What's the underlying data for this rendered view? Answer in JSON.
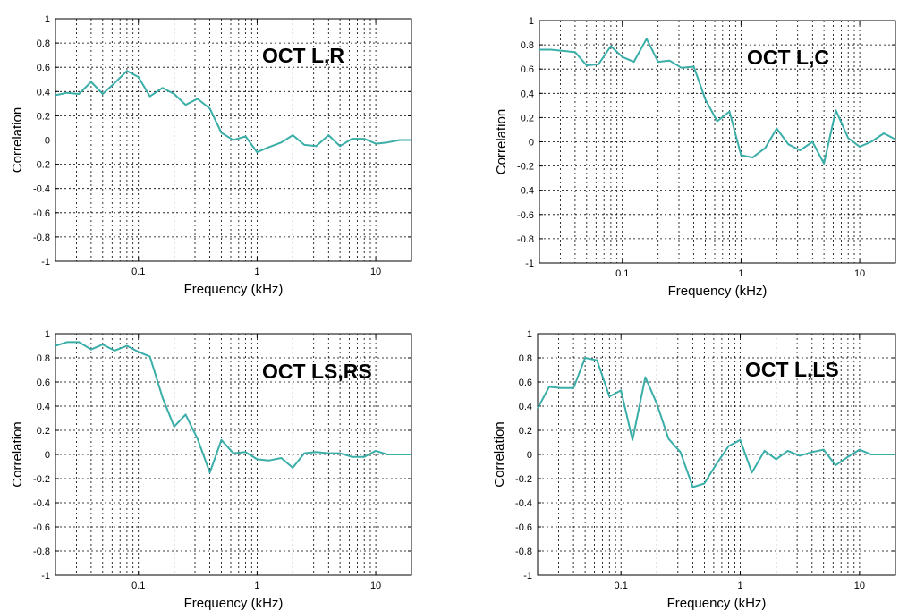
{
  "series_color": "#3aaea8",
  "chart_data": [
    {
      "type": "line",
      "title": "OCT L,R",
      "xlabel": "Frequency (kHz)",
      "ylabel": "Correlation",
      "x_scale": "log",
      "xlim": [
        0.02,
        20
      ],
      "ylim": [
        -1,
        1
      ],
      "x_ticks": [
        0.1,
        1,
        10
      ],
      "x_tick_labels": [
        "0.1",
        "1",
        "10"
      ],
      "y_ticks": [
        -1,
        -0.8,
        -0.6,
        -0.4,
        -0.2,
        0,
        0.2,
        0.4,
        0.6,
        0.8,
        1
      ],
      "y_tick_labels": [
        "-1",
        "-0.8",
        "-0.6",
        "-0.4",
        "-0.2",
        "0",
        "0.2",
        "0.4",
        "0.6",
        "0.8",
        "1"
      ],
      "grid": true,
      "x": [
        0.02,
        0.025,
        0.0315,
        0.04,
        0.05,
        0.063,
        0.08,
        0.1,
        0.125,
        0.16,
        0.2,
        0.25,
        0.315,
        0.4,
        0.5,
        0.63,
        0.8,
        1,
        1.25,
        1.6,
        2,
        2.5,
        3.15,
        4,
        5,
        6.3,
        8,
        10,
        12.5,
        16,
        20
      ],
      "y": [
        0.37,
        0.39,
        0.38,
        0.48,
        0.38,
        0.47,
        0.57,
        0.52,
        0.36,
        0.43,
        0.38,
        0.29,
        0.34,
        0.26,
        0.06,
        0.0,
        0.03,
        -0.1,
        -0.06,
        -0.02,
        0.04,
        -0.04,
        -0.05,
        0.04,
        -0.05,
        0.01,
        0.01,
        -0.03,
        -0.02,
        0.0,
        0.0
      ]
    },
    {
      "type": "line",
      "title": "OCT L,C",
      "xlabel": "Frequency (kHz)",
      "ylabel": "Correlation",
      "x_scale": "log",
      "xlim": [
        0.02,
        20
      ],
      "ylim": [
        -1,
        1
      ],
      "x_ticks": [
        0.1,
        1,
        10
      ],
      "x_tick_labels": [
        "0.1",
        "1",
        "10"
      ],
      "y_ticks": [
        -1,
        -0.8,
        -0.6,
        -0.4,
        -0.2,
        0,
        0.2,
        0.4,
        0.6,
        0.8,
        1
      ],
      "y_tick_labels": [
        "-1",
        "-0.8",
        "-0.6",
        "-0.4",
        "-0.2",
        "0",
        "0.2",
        "0.4",
        "0.6",
        "0.8",
        "1"
      ],
      "grid": true,
      "x": [
        0.02,
        0.025,
        0.0315,
        0.04,
        0.05,
        0.063,
        0.08,
        0.1,
        0.125,
        0.16,
        0.2,
        0.25,
        0.315,
        0.4,
        0.5,
        0.63,
        0.8,
        1,
        1.25,
        1.6,
        2,
        2.5,
        3.15,
        4,
        5,
        6.3,
        8,
        10,
        12.5,
        16,
        20
      ],
      "y": [
        0.76,
        0.76,
        0.75,
        0.74,
        0.63,
        0.64,
        0.79,
        0.7,
        0.66,
        0.85,
        0.66,
        0.67,
        0.61,
        0.62,
        0.35,
        0.17,
        0.25,
        -0.11,
        -0.13,
        -0.05,
        0.11,
        -0.02,
        -0.07,
        0.0,
        -0.18,
        0.26,
        0.03,
        -0.04,
        0.0,
        0.07,
        0.02
      ]
    },
    {
      "type": "line",
      "title": "OCT LS,RS",
      "xlabel": "Frequency (kHz)",
      "ylabel": "Correlation",
      "x_scale": "log",
      "xlim": [
        0.02,
        20
      ],
      "ylim": [
        -1,
        1
      ],
      "x_ticks": [
        0.1,
        1,
        10
      ],
      "x_tick_labels": [
        "0.1",
        "1",
        "10"
      ],
      "y_ticks": [
        -1,
        -0.8,
        -0.6,
        -0.4,
        -0.2,
        0,
        0.2,
        0.4,
        0.6,
        0.8,
        1
      ],
      "y_tick_labels": [
        "-1",
        "-0.8",
        "-0.6",
        "-0.4",
        "-0.2",
        "0",
        "0.2",
        "0.4",
        "0.6",
        "0.8",
        "1"
      ],
      "grid": true,
      "x": [
        0.02,
        0.025,
        0.0315,
        0.04,
        0.05,
        0.063,
        0.08,
        0.1,
        0.125,
        0.16,
        0.2,
        0.25,
        0.315,
        0.4,
        0.5,
        0.63,
        0.8,
        1,
        1.25,
        1.6,
        2,
        2.5,
        3.15,
        4,
        5,
        6.3,
        8,
        10,
        12.5,
        16,
        20
      ],
      "y": [
        0.9,
        0.93,
        0.93,
        0.87,
        0.91,
        0.86,
        0.9,
        0.85,
        0.81,
        0.47,
        0.23,
        0.33,
        0.13,
        -0.15,
        0.12,
        0.01,
        0.02,
        -0.04,
        -0.05,
        -0.03,
        -0.11,
        0.01,
        0.02,
        0.01,
        0.01,
        -0.02,
        -0.02,
        0.03,
        0.0,
        0.0,
        0.0
      ]
    },
    {
      "type": "line",
      "title": "OCT L,LS",
      "xlabel": "Frequency (kHz)",
      "ylabel": "Correlation",
      "x_scale": "log",
      "xlim": [
        0.02,
        20
      ],
      "ylim": [
        -1,
        1
      ],
      "x_ticks": [
        0.1,
        1,
        10
      ],
      "x_tick_labels": [
        "0.1",
        "1",
        "10"
      ],
      "y_ticks": [
        -1,
        -0.8,
        -0.6,
        -0.4,
        -0.2,
        0,
        0.2,
        0.4,
        0.6,
        0.8,
        1
      ],
      "y_tick_labels": [
        "-1",
        "-0.8",
        "-0.6",
        "-0.4",
        "-0.2",
        "0",
        "0.2",
        "0.4",
        "0.6",
        "0.8",
        "1"
      ],
      "grid": true,
      "x": [
        0.02,
        0.025,
        0.0315,
        0.04,
        0.05,
        0.063,
        0.08,
        0.1,
        0.125,
        0.16,
        0.2,
        0.25,
        0.315,
        0.4,
        0.5,
        0.63,
        0.8,
        1,
        1.25,
        1.6,
        2,
        2.5,
        3.15,
        4,
        5,
        6.3,
        8,
        10,
        12.5,
        16,
        20
      ],
      "y": [
        0.38,
        0.56,
        0.55,
        0.55,
        0.8,
        0.78,
        0.48,
        0.53,
        0.12,
        0.64,
        0.42,
        0.13,
        0.02,
        -0.27,
        -0.24,
        -0.08,
        0.07,
        0.12,
        -0.15,
        0.03,
        -0.04,
        0.03,
        -0.01,
        0.02,
        0.04,
        -0.09,
        -0.02,
        0.04,
        0.0,
        0.0,
        0.0
      ]
    }
  ]
}
